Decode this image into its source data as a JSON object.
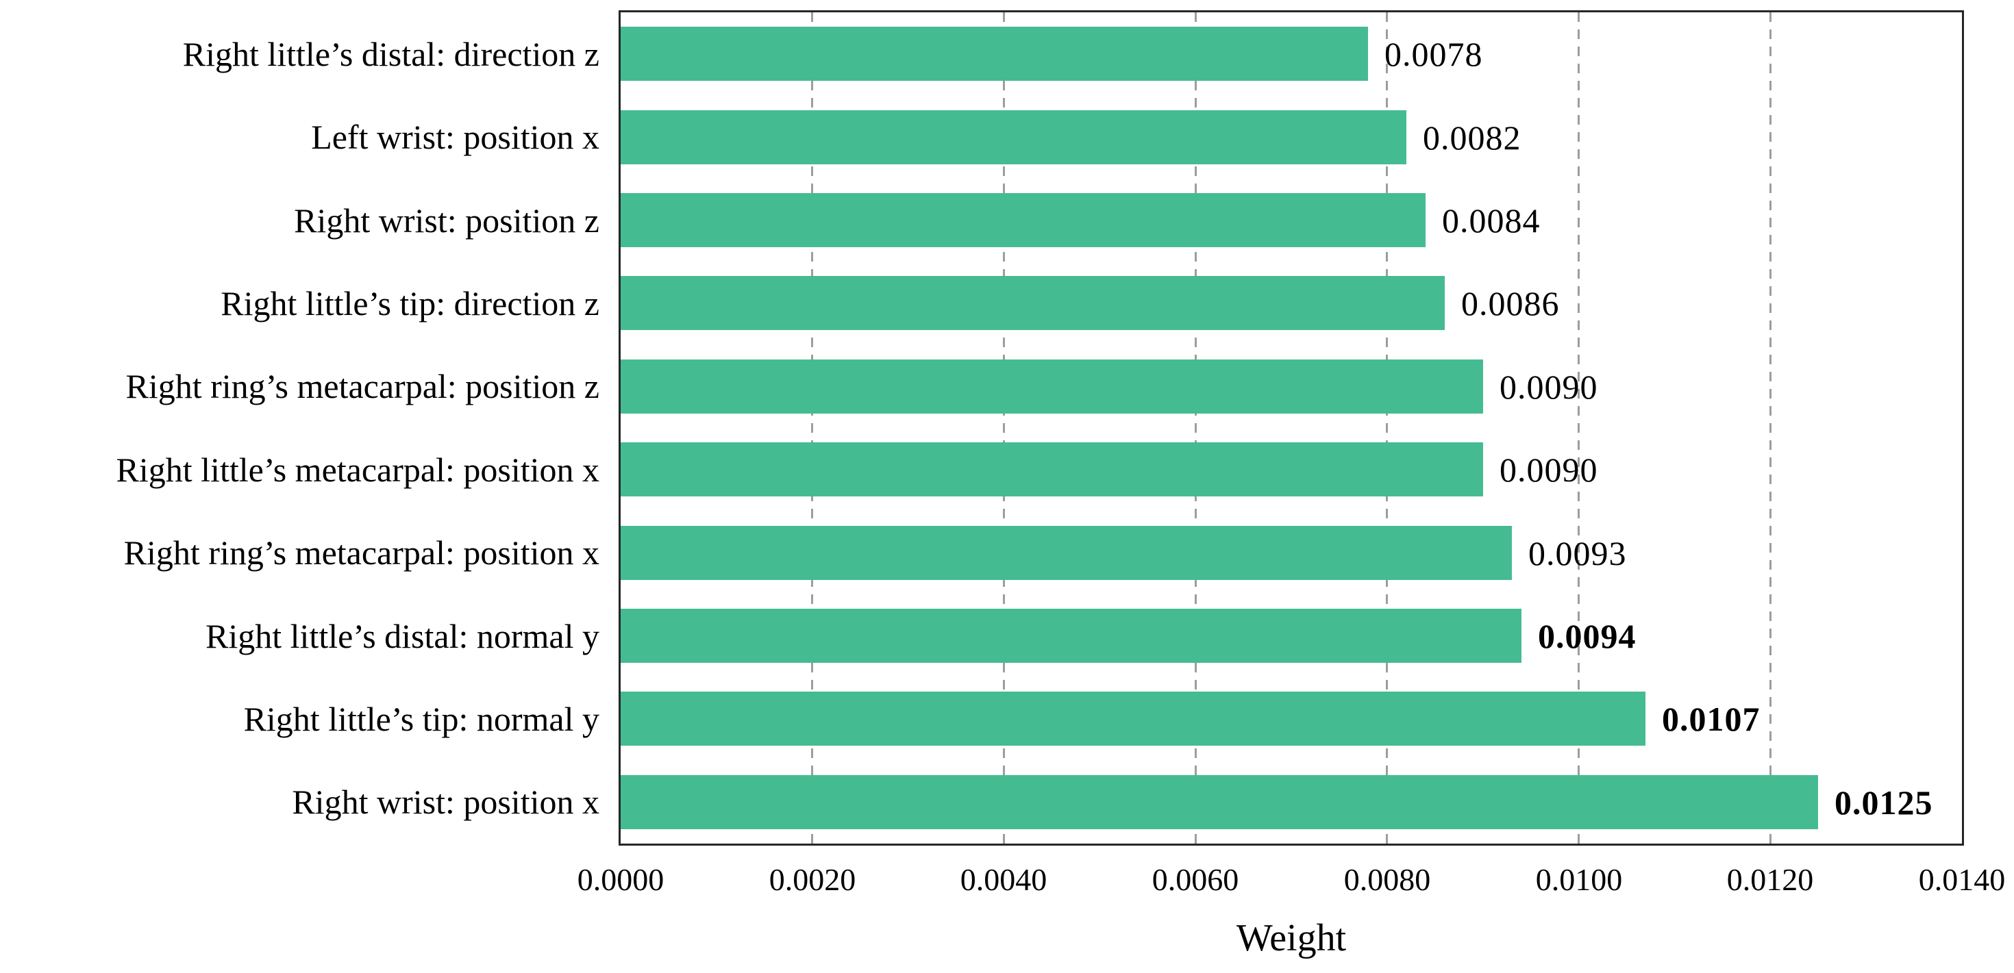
{
  "chart_data": {
    "type": "bar",
    "orientation": "horizontal",
    "title": "",
    "xlabel": "Weight",
    "ylabel": "",
    "xlim": [
      0.0,
      0.014
    ],
    "grid": "vertical-dashed",
    "legend": "none",
    "bar_color": "#45bb92",
    "axis_color": "#262626",
    "gridline_color": "#989f9e",
    "categories": [
      "Right little’s distal: direction z",
      "Left wrist: position x",
      "Right wrist: position z",
      "Right little’s tip: direction z",
      "Right ring’s metacarpal: position z",
      "Right little’s metacarpal: position x",
      "Right ring’s metacarpal: position x",
      "Right little’s distal: normal y",
      "Right little’s tip: normal y",
      "Right wrist: position x"
    ],
    "values": [
      0.0078,
      0.0082,
      0.0084,
      0.0086,
      0.009,
      0.009,
      0.0093,
      0.0094,
      0.0107,
      0.0125
    ],
    "value_labels": [
      "0.0078",
      "0.0082",
      "0.0084",
      "0.0086",
      "0.0090",
      "0.0090",
      "0.0093",
      "0.0094",
      "0.0107",
      "0.0125"
    ],
    "value_label_bold": [
      false,
      false,
      false,
      false,
      false,
      false,
      false,
      true,
      true,
      true
    ],
    "xtick_values": [
      0.0,
      0.002,
      0.004,
      0.006,
      0.008,
      0.01,
      0.012,
      0.014
    ],
    "xtick_labels": [
      "0.0000",
      "0.0020",
      "0.0040",
      "0.0060",
      "0.0080",
      "0.0100",
      "0.0120",
      "0.0140"
    ]
  }
}
